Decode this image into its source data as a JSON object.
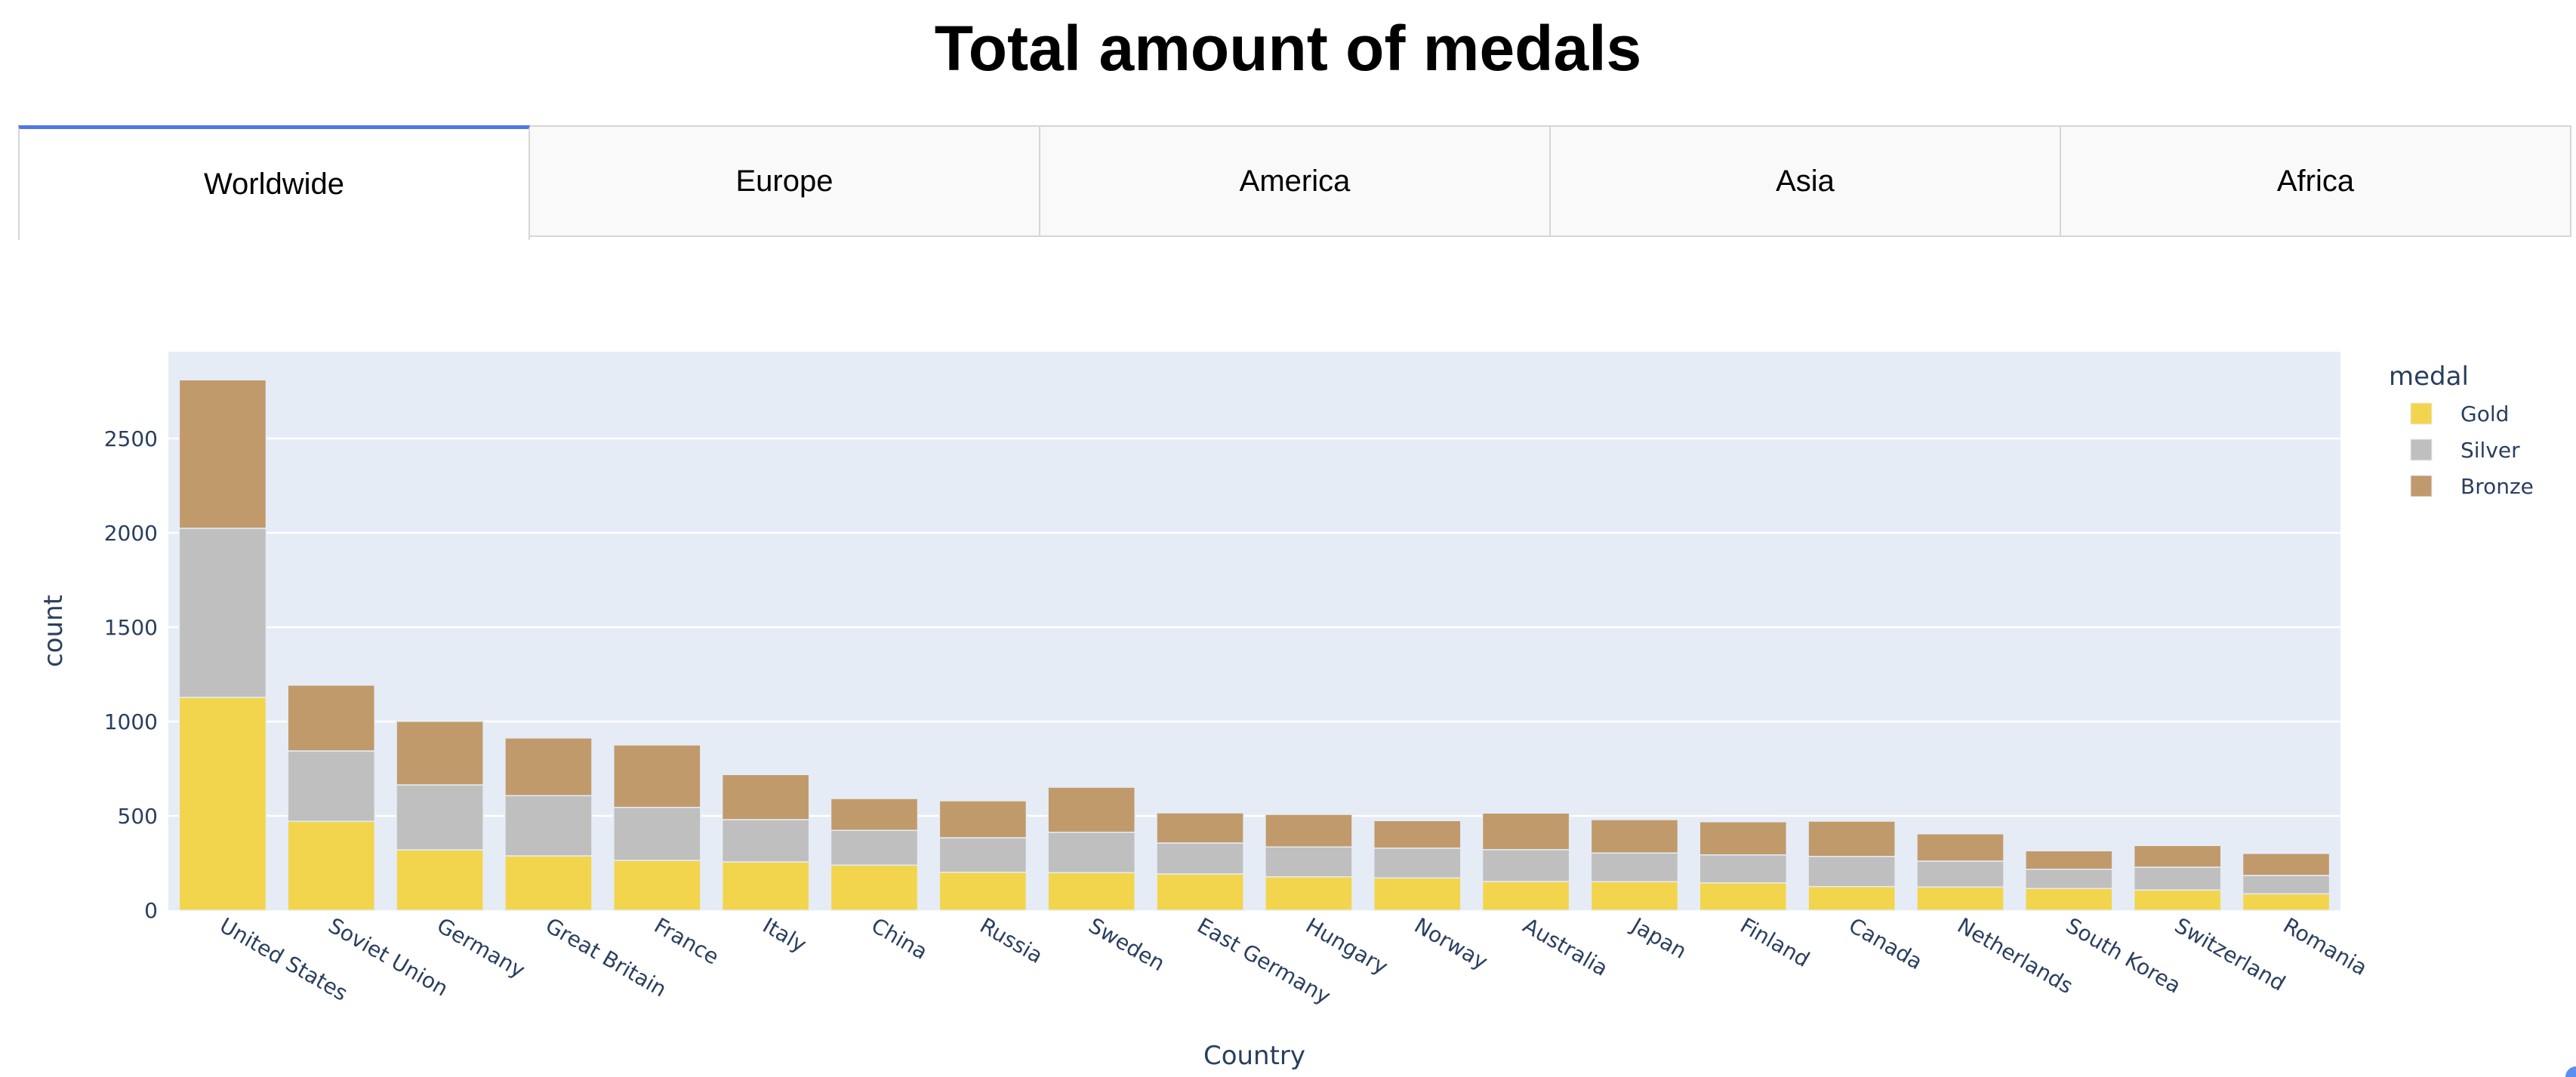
{
  "page": {
    "title": "Total amount of medals"
  },
  "tabs": [
    {
      "label": "Worldwide",
      "active": true
    },
    {
      "label": "Europe",
      "active": false
    },
    {
      "label": "America",
      "active": false
    },
    {
      "label": "Asia",
      "active": false
    },
    {
      "label": "Africa",
      "active": false
    }
  ],
  "colors": {
    "accent": "#4f77e6",
    "plot_bg": "#e5ecf6",
    "gold": "#f2d54c",
    "silver": "#bfbfbf",
    "bronze": "#c19a6b",
    "text": "#2a3f5f"
  },
  "chart_data": {
    "type": "bar",
    "barmode": "stack",
    "title": "",
    "xlabel": "Country",
    "ylabel": "count",
    "ylim": [
      0,
      2960
    ],
    "yticks": [
      0,
      500,
      1000,
      1500,
      2000,
      2500
    ],
    "grid": true,
    "legend_title": "medal",
    "legend_position": "right",
    "categories": [
      "United States",
      "Soviet Union",
      "Germany",
      "Great Britain",
      "France",
      "Italy",
      "China",
      "Russia",
      "Sweden",
      "East Germany",
      "Hungary",
      "Norway",
      "Australia",
      "Japan",
      "Finland",
      "Canada",
      "Netherlands",
      "South Korea",
      "Switzerland",
      "Romania"
    ],
    "series": [
      {
        "name": "Gold",
        "color": "#f2d54c",
        "values": [
          1128,
          471,
          320,
          288,
          264,
          256,
          239,
          201,
          199,
          192,
          177,
          171,
          152,
          151,
          145,
          125,
          123,
          115,
          107,
          87
        ]
      },
      {
        "name": "Silver",
        "color": "#bfbfbf",
        "values": [
          896,
          373,
          344,
          319,
          281,
          224,
          184,
          183,
          214,
          164,
          158,
          158,
          169,
          152,
          148,
          160,
          137,
          102,
          121,
          97
        ]
      },
      {
        "name": "Bronze",
        "color": "#c19a6b",
        "values": [
          787,
          349,
          337,
          306,
          331,
          239,
          169,
          196,
          239,
          160,
          173,
          146,
          194,
          177,
          176,
          187,
          145,
          98,
          115,
          117
        ]
      }
    ]
  }
}
